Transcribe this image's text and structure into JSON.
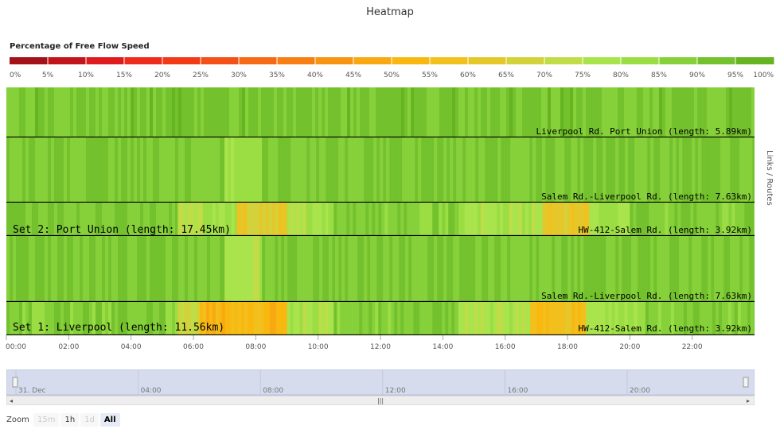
{
  "title": "Heatmap",
  "legend": {
    "title": "Percentage of Free Flow Speed",
    "ticks": [
      "0%",
      "5%",
      "10%",
      "15%",
      "20%",
      "25%",
      "30%",
      "35%",
      "40%",
      "45%",
      "50%",
      "55%",
      "60%",
      "65%",
      "70%",
      "75%",
      "80%",
      "85%",
      "90%",
      "95%",
      "100%"
    ],
    "colors": [
      "#a3121a",
      "#c2151b",
      "#e01b1e",
      "#ee2c1c",
      "#f23a17",
      "#f45018",
      "#f66a16",
      "#f77f14",
      "#f79513",
      "#f8a912",
      "#f9b810",
      "#f2c01d",
      "#e5c72a",
      "#d3d23a",
      "#c0dc46",
      "#a9e44c",
      "#9ade43",
      "#86d13a",
      "#74c12e",
      "#66b421"
    ]
  },
  "side_label": "Links / Routes",
  "rows": [
    {
      "label": "Liverpool Rd. Port Union (length: 5.89km)"
    },
    {
      "label": "Salem Rd.-Liverpool Rd. (length: 7.63km)"
    },
    {
      "label": "HW-412-Salem Rd. (length: 3.92km)",
      "set_label": "Set 2: Port Union (length: 17.45km)"
    },
    {
      "label": "Salem Rd.-Liverpool Rd. (length: 7.63km)"
    },
    {
      "label": "HW-412-Salem Rd. (length: 3.92km)",
      "set_label": "Set 1: Liverpool (length: 11.56km)"
    }
  ],
  "x_ticks": [
    "00:00",
    "02:00",
    "04:00",
    "06:00",
    "08:00",
    "10:00",
    "12:00",
    "14:00",
    "16:00",
    "18:00",
    "20:00",
    "22:00"
  ],
  "navigator": {
    "date_label": "31. Dec",
    "ticks": [
      "04:00",
      "08:00",
      "12:00",
      "16:00",
      "20:00"
    ],
    "grip": "|||"
  },
  "zoom": {
    "label": "Zoom",
    "buttons": [
      "15m",
      "1h",
      "1d",
      "All"
    ],
    "selected": "All"
  },
  "chart_data": {
    "type": "heatmap",
    "title": "Heatmap",
    "ylabel": "Links / Routes",
    "x_unit": "hour of day",
    "xlim": [
      0,
      24
    ],
    "colorbar": {
      "label": "Percentage of Free Flow Speed",
      "range": [
        0,
        100
      ]
    },
    "rows": [
      {
        "name": "Liverpool Rd. Port Union (length: 5.89km)",
        "segments": [
          [
            0,
            24,
            93
          ]
        ]
      },
      {
        "name": "Salem Rd.-Liverpool Rd. (length: 7.63km)",
        "segments": [
          [
            0,
            7,
            92
          ],
          [
            7,
            8.2,
            82
          ],
          [
            8.2,
            24,
            92
          ]
        ]
      },
      {
        "name": "HW-412-Salem Rd. (length: 3.92km)",
        "segments": [
          [
            0,
            5.5,
            92
          ],
          [
            5.5,
            6.3,
            75
          ],
          [
            6.3,
            7.4,
            82
          ],
          [
            7.4,
            9,
            65
          ],
          [
            9,
            10.5,
            80
          ],
          [
            10.5,
            14.5,
            90
          ],
          [
            14.5,
            17.2,
            80
          ],
          [
            17.2,
            18.7,
            62
          ],
          [
            18.7,
            20,
            80
          ],
          [
            20,
            24,
            90
          ]
        ]
      },
      {
        "name": "Salem Rd.-Liverpool Rd. (length: 7.63km)",
        "segments": [
          [
            0,
            7,
            92
          ],
          [
            7,
            8.2,
            80
          ],
          [
            8.2,
            24,
            92
          ]
        ]
      },
      {
        "name": "HW-412-Salem Rd. (length: 3.92km)",
        "segments": [
          [
            0,
            5.5,
            90
          ],
          [
            5.5,
            6.2,
            72
          ],
          [
            6.2,
            9,
            52
          ],
          [
            9,
            10.5,
            78
          ],
          [
            10.5,
            14.5,
            90
          ],
          [
            14.5,
            16.8,
            78
          ],
          [
            16.8,
            18.6,
            58
          ],
          [
            18.6,
            20.5,
            80
          ],
          [
            20.5,
            24,
            90
          ]
        ]
      }
    ]
  }
}
